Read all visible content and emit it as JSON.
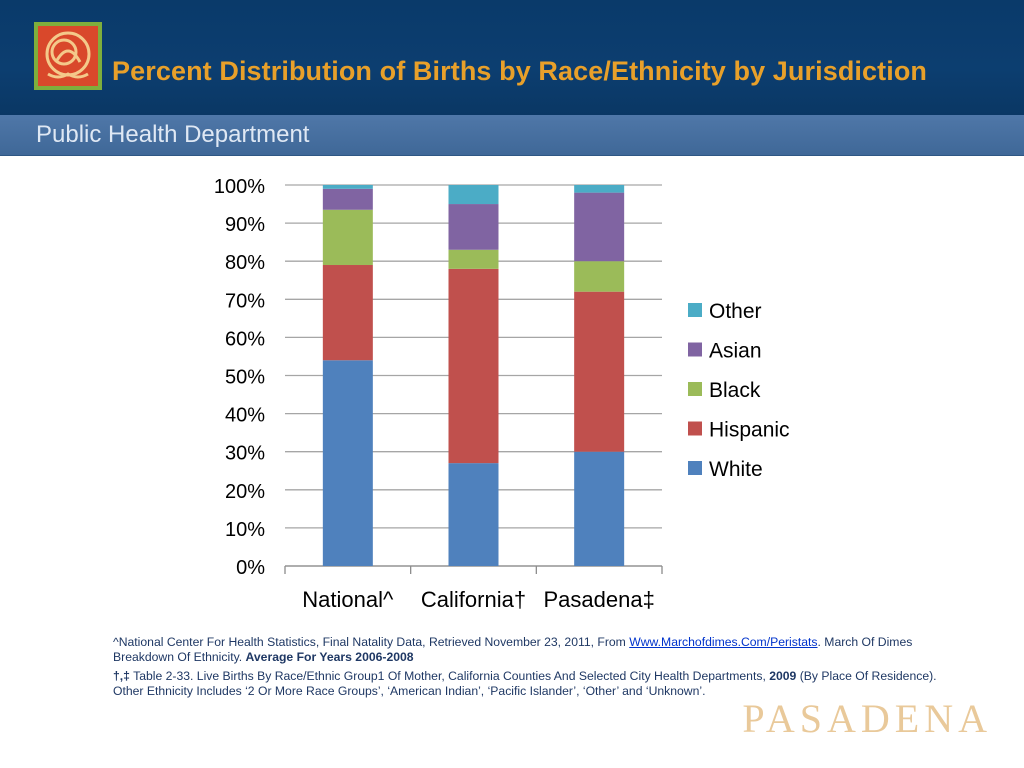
{
  "header": {
    "title": "Percent Distribution of Births by Race/Ethnicity by Jurisdiction",
    "subtitle": "Public Health Department",
    "logo_icon": "rose-logo-icon"
  },
  "chart_data": {
    "type": "bar",
    "stacked": true,
    "categories": [
      "National^",
      "California†",
      "Pasadena‡"
    ],
    "series": [
      {
        "name": "White",
        "color": "#4f81bd",
        "values": [
          54,
          27,
          30
        ]
      },
      {
        "name": "Hispanic",
        "color": "#c0504d",
        "values": [
          25,
          51,
          42
        ]
      },
      {
        "name": "Black",
        "color": "#9bbb59",
        "values": [
          14.5,
          5,
          8
        ]
      },
      {
        "name": "Asian",
        "color": "#8064a2",
        "values": [
          5.5,
          12,
          18
        ]
      },
      {
        "name": "Other",
        "color": "#4bacc6",
        "values": [
          1,
          5,
          2
        ]
      }
    ],
    "ylim": [
      0,
      100
    ],
    "yticks": [
      "0%",
      "10%",
      "20%",
      "30%",
      "40%",
      "50%",
      "60%",
      "70%",
      "80%",
      "90%",
      "100%"
    ],
    "grid": true,
    "legend_order": [
      "Other",
      "Asian",
      "Black",
      "Hispanic",
      "White"
    ],
    "legend_position": "right"
  },
  "footnotes": {
    "n1_text": "^National Center For Health Statistics, Final Natality Data, Retrieved November 23, 2011, From ",
    "n1_link": "Www.Marchofdimes.Com/Peristats",
    "n1_after": ". March Of Dimes Breakdown Of Ethnicity. ",
    "n1_bold": "Average For Years 2006-2008",
    "n2_marks": "†,‡",
    "n2_text": "  Table 2-33. Live Births By Race/Ethnic Group1 Of Mother, California Counties And Selected City Health Departments, ",
    "n2_bold": "2009",
    "n2_after": " (By Place Of Residence). Other Ethnicity Includes ‘2 Or More Race Groups’, ‘American Indian’, ‘Pacific Islander’, ‘Other’ and ‘Unknown’."
  },
  "brand": {
    "text": "PASADENA"
  }
}
